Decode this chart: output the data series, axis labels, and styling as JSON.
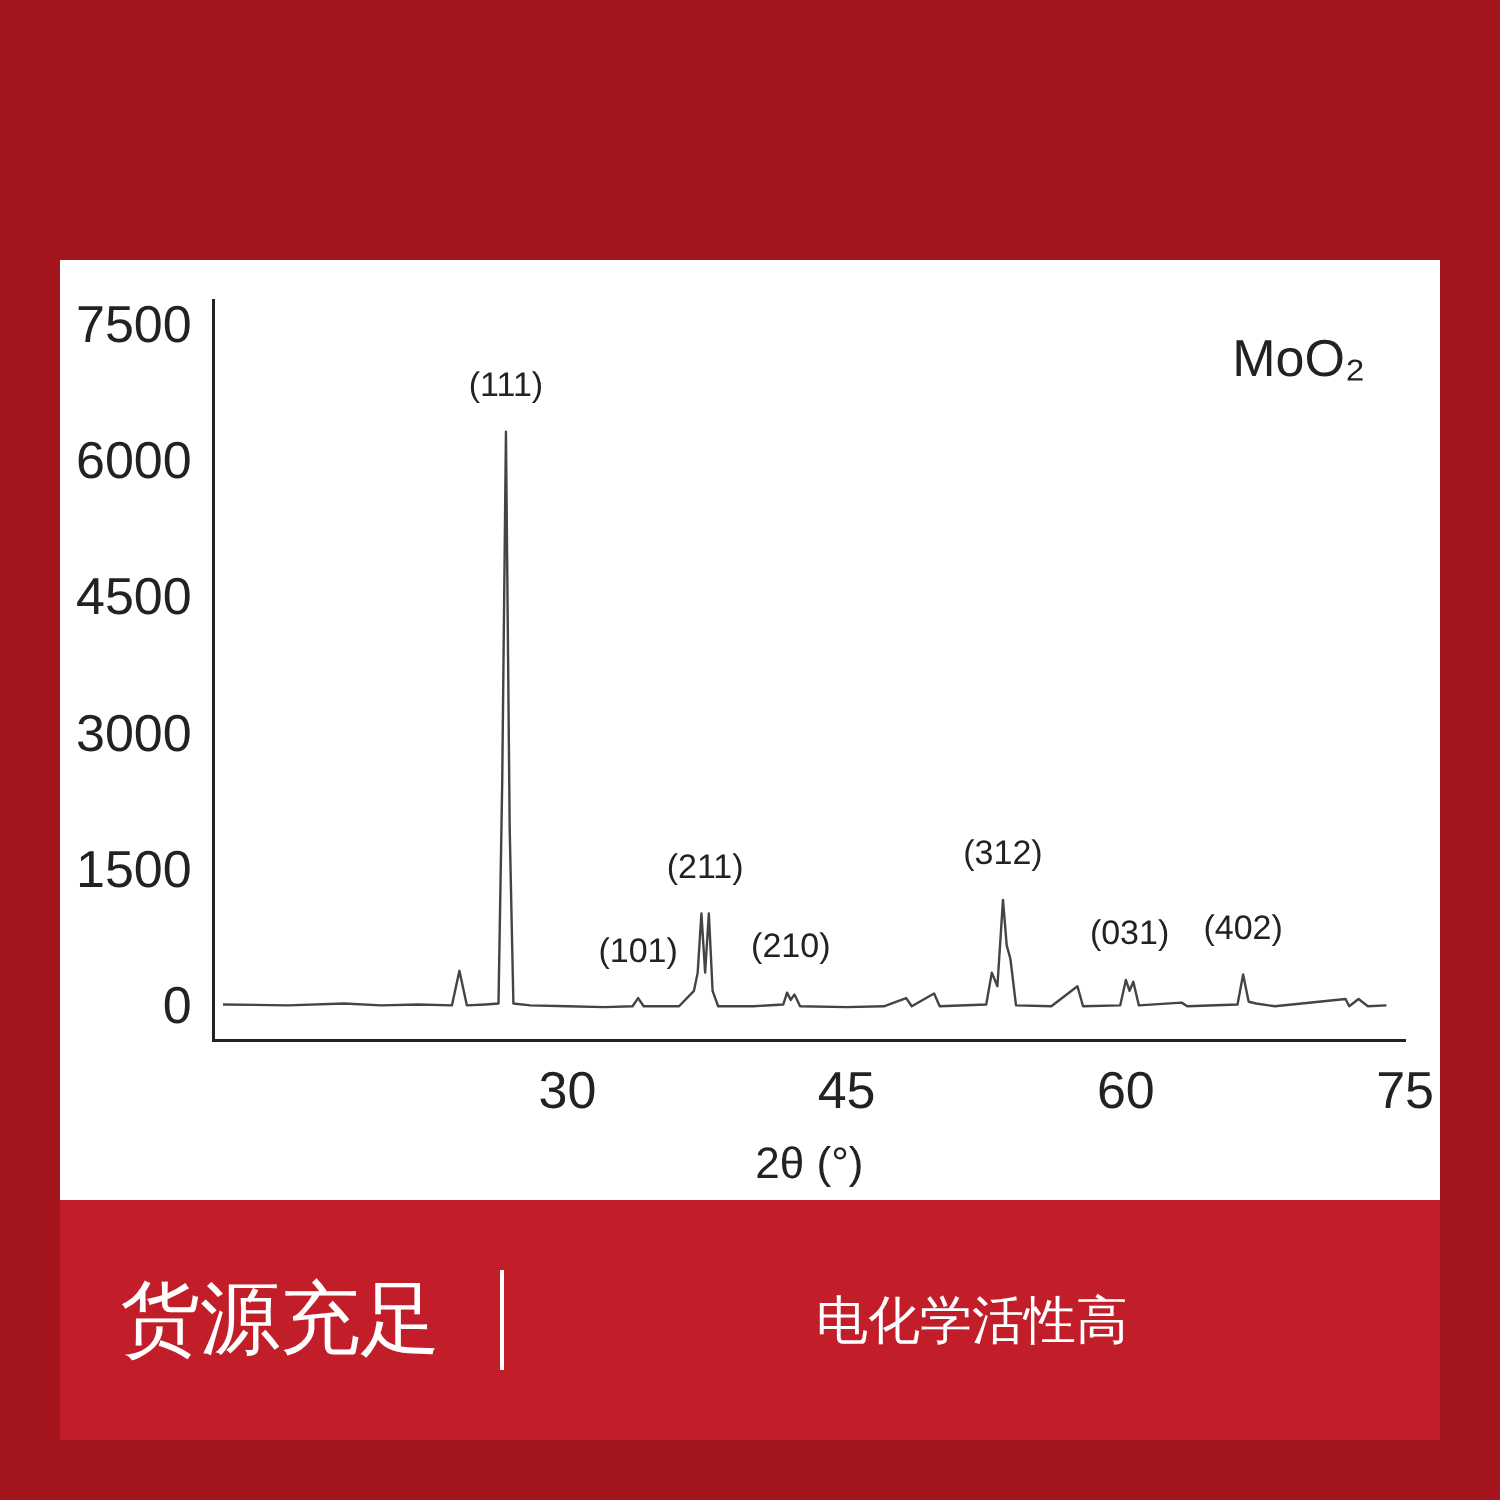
{
  "chart_data": {
    "type": "line",
    "title": "MoO₂",
    "xlabel": "2θ (°)",
    "xlim": [
      11,
      75
    ],
    "xticks": [
      30,
      45,
      60,
      75
    ],
    "ylim": [
      -350,
      7800
    ],
    "yticks": [
      0,
      1500,
      3000,
      4500,
      6000,
      7500
    ],
    "grid": false,
    "legend": false,
    "marker": "none",
    "line_style": "solid",
    "series": [
      {
        "color": "#444444",
        "x": [
          11.5,
          15,
          18,
          20,
          22,
          23.8,
          24.2,
          24.6,
          25.6,
          26.3,
          26.5,
          26.7,
          26.9,
          27.1,
          28,
          30,
          32,
          33.5,
          33.8,
          34.1,
          36,
          36.8,
          37.0,
          37.2,
          37.4,
          37.6,
          37.8,
          38.1,
          40,
          41.6,
          41.8,
          42.0,
          42.2,
          42.5,
          45,
          47,
          48.2,
          48.5,
          49.7,
          50,
          52.5,
          52.8,
          53.1,
          53.4,
          53.6,
          53.8,
          54.1,
          56,
          57.4,
          57.7,
          59.7,
          60.0,
          60.2,
          60.4,
          60.7,
          63,
          63.3,
          66.0,
          66.3,
          66.6,
          67,
          68,
          71.8,
          72,
          72.5,
          73,
          74
        ],
        "values": [
          50,
          40,
          60,
          40,
          50,
          40,
          420,
          40,
          50,
          60,
          2500,
          6350,
          2000,
          60,
          40,
          30,
          20,
          30,
          120,
          30,
          30,
          200,
          400,
          1050,
          400,
          1050,
          200,
          30,
          30,
          50,
          180,
          100,
          160,
          30,
          20,
          30,
          120,
          30,
          170,
          30,
          50,
          400,
          250,
          1200,
          700,
          550,
          40,
          30,
          250,
          30,
          40,
          320,
          200,
          300,
          40,
          70,
          30,
          50,
          380,
          80,
          60,
          30,
          110,
          30,
          110,
          30,
          40
        ]
      }
    ],
    "annotations": [
      {
        "text": "(111)",
        "x": 26.7,
        "y": 6350
      },
      {
        "text": "(101)",
        "x": 33.8,
        "y": 120
      },
      {
        "text": "(211)",
        "x": 37.4,
        "y": 1050
      },
      {
        "text": "(210)",
        "x": 42.0,
        "y": 180
      },
      {
        "text": "(312)",
        "x": 53.4,
        "y": 1200
      },
      {
        "text": "(031)",
        "x": 60.2,
        "y": 320
      },
      {
        "text": "(402)",
        "x": 66.3,
        "y": 380
      },
      "货源充足",
      "电化学活性高"
    ]
  }
}
